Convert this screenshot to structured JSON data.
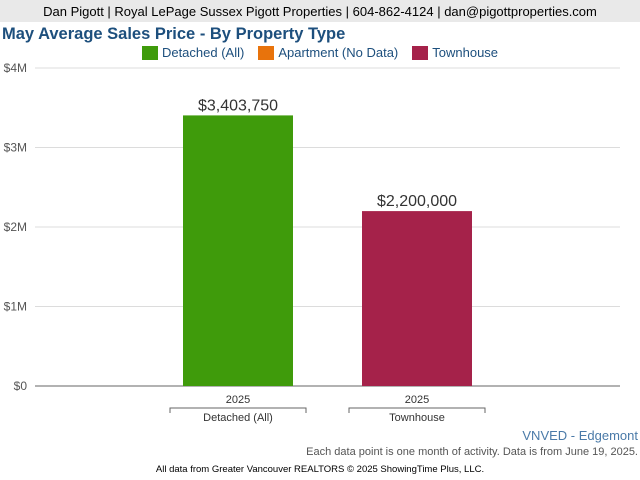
{
  "header": {
    "contact_line": "Dan Pigott | Royal LePage Sussex Pigott Properties | 604-862-4124 | dan@pigottproperties.com"
  },
  "colors": {
    "title": "#1d4f7d",
    "detached": "#3f9b0b",
    "apartment": "#e8730c",
    "townhouse": "#a5224a"
  },
  "legend": [
    {
      "label": "Detached (All)",
      "color": "#3f9b0b"
    },
    {
      "label": "Apartment (No Data)",
      "color": "#e8730c"
    },
    {
      "label": "Townhouse",
      "color": "#a5224a"
    }
  ],
  "chart_data": {
    "type": "bar",
    "title": "May Average Sales Price - By Property Type",
    "ylim": [
      0,
      4000000
    ],
    "yticks": [
      {
        "value": 0,
        "label": "$0"
      },
      {
        "value": 1000000,
        "label": "$1M"
      },
      {
        "value": 2000000,
        "label": "$2M"
      },
      {
        "value": 3000000,
        "label": "$3M"
      },
      {
        "value": 4000000,
        "label": "$4M"
      }
    ],
    "grid": true,
    "legend_position": "top",
    "groups": [
      {
        "name": "Detached (All)",
        "bars": [
          {
            "x": "2025",
            "value": 3403750,
            "label": "$3,403,750",
            "color": "#3f9b0b"
          }
        ]
      },
      {
        "name": "Townhouse",
        "bars": [
          {
            "x": "2025",
            "value": 2200000,
            "label": "$2,200,000",
            "color": "#a5224a"
          }
        ]
      }
    ]
  },
  "region": "VNVED - Edgemont",
  "note": "Each data point is one month of activity. Data is from June 19, 2025.",
  "footer": "All data from Greater Vancouver REALTORS © 2025 ShowingTime Plus, LLC."
}
